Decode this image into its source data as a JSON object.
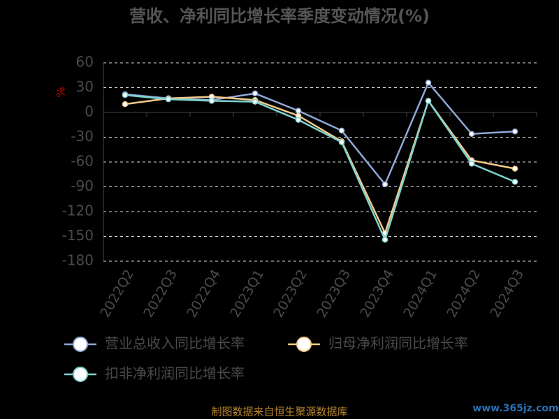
{
  "chart_data": {
    "type": "line",
    "title": "营收、净利同比增长率季度变动情况(%)",
    "y_label": "%",
    "categories": [
      "2022Q2",
      "2022Q3",
      "2022Q4",
      "2023Q1",
      "2023Q2",
      "2023Q3",
      "2023Q4",
      "2024Q1",
      "2024Q2",
      "2024Q3"
    ],
    "series": [
      {
        "name": "营业总收入同比增长率",
        "color": "#8fa8d8",
        "values": [
          22,
          17,
          15,
          23,
          2,
          -22,
          -87,
          36,
          -26,
          -23
        ]
      },
      {
        "name": "归母净利润同比增长率",
        "color": "#f5c98a",
        "values": [
          10,
          17,
          19,
          15,
          -4,
          -35,
          -146,
          14,
          -58,
          -68
        ]
      },
      {
        "name": "扣非净利润同比增长率",
        "color": "#7dd3d0",
        "values": [
          21,
          16,
          14,
          13,
          -9,
          -36,
          -154,
          14,
          -62,
          -84
        ]
      }
    ],
    "ylim": [
      -180,
      60
    ],
    "yticks": [
      -180,
      -150,
      -120,
      -90,
      -60,
      -30,
      0,
      30,
      60
    ],
    "grid": true,
    "source": "制图数据来自恒生聚源数据库",
    "watermark": "www.365jz.com"
  }
}
